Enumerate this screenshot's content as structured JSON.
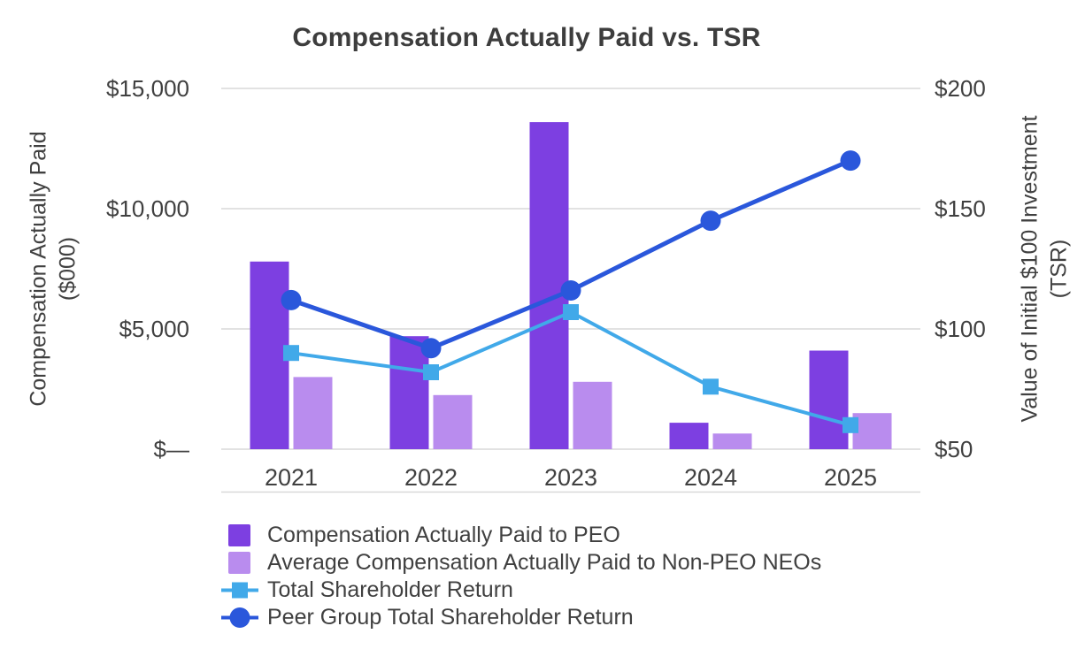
{
  "chart_data": {
    "type": "combo-bar-line",
    "title": "Compensation Actually Paid vs. TSR",
    "categories": [
      "2021",
      "2022",
      "2023",
      "2024",
      "2025"
    ],
    "grid": true,
    "legend_position": "bottom-left",
    "grid_color": "#d9d9d9",
    "text_color": "#404040",
    "left_axis": {
      "title_lines": [
        "Compensation Actually Paid",
        "($000)"
      ],
      "range": [
        0,
        15000
      ],
      "ticks": [
        0,
        5000,
        10000,
        15000
      ],
      "tick_labels": [
        "$—",
        "$5,000",
        "$10,000",
        "$15,000"
      ]
    },
    "right_axis": {
      "title_lines": [
        "Value of Initial $100 Investment",
        "(TSR)"
      ],
      "range": [
        50,
        200
      ],
      "ticks": [
        50,
        100,
        150,
        200
      ],
      "tick_labels": [
        "$50",
        "$100",
        "$150",
        "$200"
      ]
    },
    "bar_series": [
      {
        "name": "Compensation Actually Paid to PEO",
        "color": "#7d3fe1",
        "axis": "left",
        "values": [
          7800,
          4700,
          13600,
          1100,
          4100
        ]
      },
      {
        "name": "Average Compensation Actually Paid to Non-PEO NEOs",
        "color": "#b98cee",
        "axis": "left",
        "values": [
          3000,
          2250,
          2800,
          650,
          1500
        ]
      }
    ],
    "line_series": [
      {
        "name": "Total Shareholder Return",
        "color": "#41a9e9",
        "marker": "square",
        "axis": "right",
        "values": [
          90,
          82,
          107,
          76,
          60
        ]
      },
      {
        "name": "Peer Group Total Shareholder Return",
        "color": "#2a57db",
        "marker": "circle",
        "axis": "right",
        "values": [
          112,
          92,
          116,
          145,
          170
        ]
      }
    ]
  }
}
